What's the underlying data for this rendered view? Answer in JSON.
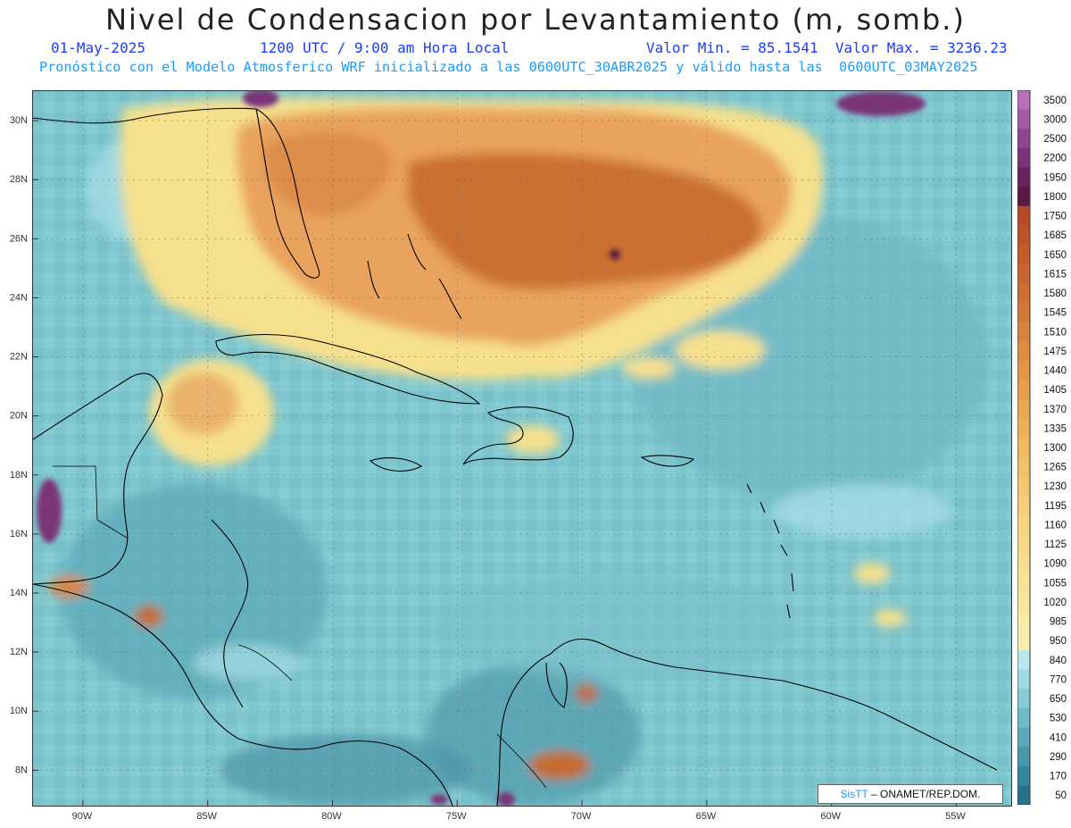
{
  "header": {
    "title": "Nivel de Condensacion por Levantamiento (m, somb.)",
    "date": "01-May-2025",
    "time": "1200 UTC / 9:00 am Hora Local",
    "minmax": "Valor Min. = 85.1541  Valor Max. = 3236.23",
    "forecast": "Pronóstico con el Modelo Atmosferico WRF inicializado a las 0600UTC_30ABR2025 y válido hasta las  0600UTC_03MAY2025"
  },
  "map": {
    "lat_labels": [
      "30N",
      "28N",
      "26N",
      "24N",
      "22N",
      "20N",
      "18N",
      "16N",
      "14N",
      "12N",
      "10N",
      "8N"
    ],
    "lon_labels": [
      "90W",
      "85W",
      "80W",
      "75W",
      "70W",
      "65W",
      "60W",
      "55W"
    ],
    "colors": {
      "ocean_base": "#7fc7cf",
      "dry_high": "#c76a2e",
      "mid": "#e9a35d",
      "light": "#f6e08e"
    }
  },
  "colorbar": {
    "labels": [
      "3500",
      "3000",
      "2500",
      "2200",
      "1950",
      "1800",
      "1750",
      "1685",
      "1650",
      "1615",
      "1580",
      "1545",
      "1510",
      "1475",
      "1440",
      "1405",
      "1370",
      "1335",
      "1300",
      "1265",
      "1230",
      "1195",
      "1160",
      "1125",
      "1090",
      "1055",
      "1020",
      "985",
      "950",
      "840",
      "770",
      "650",
      "530",
      "410",
      "290",
      "170",
      "50"
    ],
    "colors": [
      "#b96fb9",
      "#a65aa6",
      "#8e4690",
      "#7a3479",
      "#66245f",
      "#5a1a44",
      "#b84a25",
      "#bd5428",
      "#c35c2b",
      "#c9652f",
      "#cf6e33",
      "#d47837",
      "#d9823b",
      "#de8c40",
      "#e29645",
      "#e6a04b",
      "#e9a951",
      "#ecb158",
      "#efb960",
      "#f1c067",
      "#f3c76f",
      "#f5cd77",
      "#f6d37f",
      "#f7d887",
      "#f8dd8f",
      "#f8e296",
      "#f9e69e",
      "#f9eaa6",
      "#f7eeae",
      "#b7e7ee",
      "#9ed9e2",
      "#86cad6",
      "#6fbac9",
      "#5aa9bb",
      "#4797ab",
      "#35859b",
      "#26748b"
    ]
  },
  "credit": {
    "brand": "SisTT",
    "org": "– ONAMET/REP.DOM."
  }
}
